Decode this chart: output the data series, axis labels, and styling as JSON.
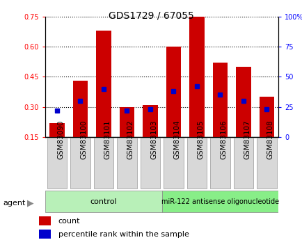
{
  "title": "GDS1729 / 67055",
  "samples": [
    "GSM83090",
    "GSM83100",
    "GSM83101",
    "GSM83102",
    "GSM83103",
    "GSM83104",
    "GSM83105",
    "GSM83106",
    "GSM83107",
    "GSM83108"
  ],
  "count_values": [
    0.22,
    0.43,
    0.68,
    0.3,
    0.31,
    0.6,
    0.75,
    0.52,
    0.5,
    0.35
  ],
  "percentile_values": [
    22,
    30,
    40,
    22,
    23,
    38,
    42,
    35,
    30,
    23
  ],
  "ylim_left": [
    0.15,
    0.75
  ],
  "ylim_right": [
    0,
    100
  ],
  "yticks_left": [
    0.15,
    0.3,
    0.45,
    0.6,
    0.75
  ],
  "yticks_right": [
    0,
    25,
    50,
    75,
    100
  ],
  "bar_color": "#cc0000",
  "marker_color": "#0000cc",
  "bar_width": 0.65,
  "bg_color": "#d8d8d8",
  "plot_bg": "#ffffff",
  "control_samples": 5,
  "control_label": "control",
  "treatment_label": "miR-122 antisense oligonucleotide",
  "agent_label": "agent",
  "legend_count": "count",
  "legend_percentile": "percentile rank within the sample",
  "control_color": "#b8f0b8",
  "treatment_color": "#88ee88",
  "tick_fontsize": 7,
  "label_fontsize": 7.5,
  "title_fontsize": 10
}
